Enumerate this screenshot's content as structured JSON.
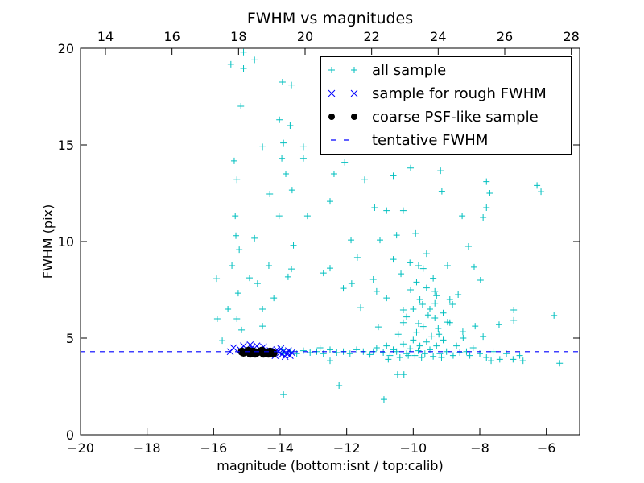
{
  "chart_data": {
    "type": "scatter",
    "title": "FWHM vs magnitudes",
    "xlabel": "magnitude (bottom:isnt / top:calib)",
    "ylabel": "FWHM (pix)",
    "xlim": [
      -20,
      -5
    ],
    "ylim": [
      0,
      20
    ],
    "top_axis_offset": 33.25,
    "xticks": [
      -20,
      -18,
      -16,
      -14,
      -12,
      -10,
      -8,
      -6
    ],
    "xtick_labels": [
      "−20",
      "−18",
      "−16",
      "−14",
      "−12",
      "−10",
      "−8",
      "−6"
    ],
    "yticks": [
      0,
      5,
      10,
      15,
      20
    ],
    "ytick_labels": [
      "0",
      "5",
      "10",
      "15",
      "20"
    ],
    "top_xticks": [
      14,
      16,
      18,
      20,
      22,
      24,
      26,
      28
    ],
    "top_xtick_labels": [
      "14",
      "16",
      "18",
      "20",
      "22",
      "24",
      "26",
      "28"
    ],
    "legend_position": "top-right",
    "tentative_fwhm": 4.3,
    "colors": {
      "all": "#00bfbf",
      "rough": "#0000ff",
      "coarse": "#000000",
      "tentative": "#0000ff"
    },
    "series": [
      {
        "name": "all sample",
        "marker": "plus",
        "points": [
          [
            -15.48,
            19.17
          ],
          [
            -15.1,
            19.8
          ],
          [
            -14.77,
            19.4
          ],
          [
            -15.1,
            18.96
          ],
          [
            -13.93,
            18.25
          ],
          [
            -13.66,
            18.1
          ],
          [
            -15.18,
            17.0
          ],
          [
            -14.02,
            16.3
          ],
          [
            -13.7,
            16.0
          ],
          [
            -13.9,
            15.1
          ],
          [
            -13.3,
            14.9
          ],
          [
            -14.53,
            14.9
          ],
          [
            -15.38,
            14.17
          ],
          [
            -13.95,
            14.3
          ],
          [
            -13.3,
            14.3
          ],
          [
            -12.38,
            13.5
          ],
          [
            -15.3,
            13.2
          ],
          [
            -13.83,
            13.5
          ],
          [
            -12.06,
            14.1
          ],
          [
            -11.46,
            13.2
          ],
          [
            -10.6,
            13.4
          ],
          [
            -10.08,
            13.8
          ],
          [
            -9.18,
            13.66
          ],
          [
            -7.8,
            13.1
          ],
          [
            -6.28,
            12.9
          ],
          [
            -6.16,
            12.58
          ],
          [
            -9.14,
            12.6
          ],
          [
            -7.7,
            12.5
          ],
          [
            -14.31,
            12.46
          ],
          [
            -13.64,
            12.66
          ],
          [
            -12.5,
            12.08
          ],
          [
            -11.16,
            11.75
          ],
          [
            -10.8,
            11.6
          ],
          [
            -10.3,
            11.6
          ],
          [
            -8.53,
            11.33
          ],
          [
            -7.8,
            11.75
          ],
          [
            -7.9,
            11.25
          ],
          [
            -13.18,
            11.33
          ],
          [
            -14.03,
            11.33
          ],
          [
            -15.35,
            11.33
          ],
          [
            -15.33,
            10.3
          ],
          [
            -14.77,
            10.17
          ],
          [
            -11.87,
            10.08
          ],
          [
            -11.0,
            10.08
          ],
          [
            -10.5,
            10.33
          ],
          [
            -9.93,
            10.42
          ],
          [
            -8.34,
            9.75
          ],
          [
            -13.6,
            9.8
          ],
          [
            -15.23,
            9.58
          ],
          [
            -11.68,
            9.17
          ],
          [
            -10.6,
            9.08
          ],
          [
            -9.6,
            9.37
          ],
          [
            -15.45,
            8.75
          ],
          [
            -14.34,
            8.75
          ],
          [
            -13.66,
            8.58
          ],
          [
            -12.5,
            8.62
          ],
          [
            -15.91,
            8.08
          ],
          [
            -14.92,
            8.12
          ],
          [
            -13.76,
            8.17
          ],
          [
            -12.7,
            8.37
          ],
          [
            -11.2,
            8.04
          ],
          [
            -10.37,
            8.33
          ],
          [
            -9.84,
            8.75
          ],
          [
            -8.97,
            8.75
          ],
          [
            -8.17,
            8.67
          ],
          [
            -7.98,
            8.0
          ],
          [
            -14.68,
            7.83
          ],
          [
            -11.85,
            7.83
          ],
          [
            -11.1,
            7.42
          ],
          [
            -15.26,
            7.33
          ],
          [
            -14.19,
            7.08
          ],
          [
            -12.1,
            7.58
          ],
          [
            -10.8,
            7.08
          ],
          [
            -10.08,
            7.5
          ],
          [
            -9.35,
            7.42
          ],
          [
            -8.65,
            7.25
          ],
          [
            -15.57,
            6.5
          ],
          [
            -11.58,
            6.58
          ],
          [
            -10.3,
            6.46
          ],
          [
            -9.72,
            6.75
          ],
          [
            -8.82,
            6.75
          ],
          [
            -6.98,
            6.46
          ],
          [
            -5.77,
            6.17
          ],
          [
            -15.3,
            6.0
          ],
          [
            -14.53,
            6.5
          ],
          [
            -11.05,
            5.58
          ],
          [
            -9.35,
            6.04
          ],
          [
            -9.84,
            5.75
          ],
          [
            -8.97,
            5.83
          ],
          [
            -8.14,
            5.62
          ],
          [
            -7.42,
            5.7
          ],
          [
            -6.98,
            5.92
          ],
          [
            -15.89,
            6.0
          ],
          [
            -14.53,
            5.62
          ],
          [
            -15.16,
            5.42
          ],
          [
            -9.23,
            5.2
          ],
          [
            -8.51,
            5.33
          ],
          [
            -7.9,
            5.08
          ],
          [
            -15.74,
            4.87
          ],
          [
            -13.9,
            2.08
          ],
          [
            -12.23,
            2.54
          ],
          [
            -10.88,
            1.83
          ],
          [
            -10.47,
            3.12
          ],
          [
            -10.28,
            3.12
          ],
          [
            -5.6,
            3.7
          ],
          [
            -12.5,
            3.83
          ],
          [
            -6.7,
            3.83
          ],
          [
            -7.66,
            3.83
          ],
          [
            -13.7,
            4.3
          ],
          [
            -13.5,
            4.2
          ],
          [
            -13.3,
            4.35
          ],
          [
            -13.1,
            4.25
          ],
          [
            -12.9,
            4.3
          ],
          [
            -12.7,
            4.2
          ],
          [
            -12.5,
            4.4
          ],
          [
            -12.3,
            4.25
          ],
          [
            -12.1,
            4.3
          ],
          [
            -11.9,
            4.2
          ],
          [
            -11.7,
            4.4
          ],
          [
            -11.5,
            4.3
          ],
          [
            -11.3,
            4.15
          ],
          [
            -11.1,
            4.5
          ],
          [
            -10.9,
            4.25
          ],
          [
            -10.8,
            4.6
          ],
          [
            -10.7,
            4.1
          ],
          [
            -10.6,
            4.4
          ],
          [
            -10.5,
            4.3
          ],
          [
            -10.4,
            4.0
          ],
          [
            -10.3,
            4.7
          ],
          [
            -10.2,
            4.2
          ],
          [
            -10.1,
            4.45
          ],
          [
            -10.0,
            4.9
          ],
          [
            -9.95,
            4.1
          ],
          [
            -9.9,
            5.3
          ],
          [
            -9.85,
            4.35
          ],
          [
            -9.8,
            4.6
          ],
          [
            -9.7,
            5.6
          ],
          [
            -9.65,
            4.2
          ],
          [
            -9.6,
            4.8
          ],
          [
            -9.55,
            6.2
          ],
          [
            -9.5,
            4.4
          ],
          [
            -9.45,
            5.1
          ],
          [
            -9.4,
            4.05
          ],
          [
            -9.35,
            6.8
          ],
          [
            -9.3,
            4.6
          ],
          [
            -9.25,
            5.5
          ],
          [
            -9.2,
            4.2
          ],
          [
            -9.1,
            4.9
          ],
          [
            -9.0,
            4.3
          ],
          [
            -8.9,
            5.8
          ],
          [
            -8.8,
            4.1
          ],
          [
            -8.7,
            4.6
          ],
          [
            -8.6,
            4.25
          ],
          [
            -8.5,
            5.0
          ],
          [
            -8.4,
            4.3
          ],
          [
            -8.3,
            4.1
          ],
          [
            -8.2,
            4.5
          ],
          [
            -8.0,
            4.2
          ],
          [
            -7.8,
            4.0
          ],
          [
            -7.6,
            4.3
          ],
          [
            -7.4,
            3.9
          ],
          [
            -7.2,
            4.2
          ],
          [
            -7.0,
            3.9
          ],
          [
            -6.8,
            4.1
          ],
          [
            -13.9,
            4.2
          ],
          [
            -13.95,
            4.4
          ],
          [
            -12.8,
            4.5
          ],
          [
            -11.2,
            4.3
          ],
          [
            -10.75,
            3.9
          ],
          [
            -10.15,
            4.1
          ],
          [
            -9.75,
            4.0
          ],
          [
            -9.15,
            4.0
          ],
          [
            -10.45,
            5.2
          ],
          [
            -10.2,
            6.1
          ],
          [
            -9.8,
            7.0
          ],
          [
            -10.0,
            6.5
          ],
          [
            -9.6,
            7.6
          ],
          [
            -9.4,
            8.1
          ],
          [
            -10.3,
            5.8
          ],
          [
            -9.9,
            7.9
          ],
          [
            -9.7,
            8.6
          ],
          [
            -10.1,
            8.9
          ],
          [
            -9.5,
            6.5
          ],
          [
            -9.3,
            7.2
          ],
          [
            -9.1,
            6.3
          ],
          [
            -8.9,
            7.0
          ]
        ]
      },
      {
        "name": "sample for rough FWHM",
        "marker": "x",
        "points": [
          [
            -15.5,
            4.3
          ],
          [
            -15.4,
            4.5
          ],
          [
            -15.2,
            4.4
          ],
          [
            -15.1,
            4.6
          ],
          [
            -15.0,
            4.3
          ],
          [
            -14.9,
            4.65
          ],
          [
            -14.85,
            4.5
          ],
          [
            -14.8,
            4.3
          ],
          [
            -14.7,
            4.6
          ],
          [
            -14.6,
            4.4
          ],
          [
            -14.5,
            4.55
          ],
          [
            -14.4,
            4.3
          ],
          [
            -14.3,
            4.35
          ],
          [
            -14.2,
            4.2
          ],
          [
            -14.1,
            4.4
          ],
          [
            -14.0,
            4.25
          ],
          [
            -13.95,
            4.15
          ],
          [
            -13.9,
            4.3
          ],
          [
            -13.85,
            4.05
          ],
          [
            -13.8,
            4.2
          ],
          [
            -13.75,
            4.35
          ],
          [
            -13.7,
            4.1
          ],
          [
            -13.65,
            4.25
          ],
          [
            -14.15,
            4.1
          ],
          [
            -14.05,
            4.3
          ],
          [
            -13.98,
            4.45
          ]
        ]
      },
      {
        "name": "coarse PSF-like sample",
        "marker": "dot",
        "points": [
          [
            -15.1,
            4.25
          ],
          [
            -15.0,
            4.3
          ],
          [
            -14.9,
            4.2
          ],
          [
            -14.8,
            4.3
          ],
          [
            -14.7,
            4.25
          ],
          [
            -14.6,
            4.3
          ],
          [
            -14.5,
            4.2
          ],
          [
            -14.4,
            4.25
          ],
          [
            -14.3,
            4.3
          ],
          [
            -14.2,
            4.22
          ],
          [
            -15.15,
            4.3
          ],
          [
            -14.95,
            4.35
          ],
          [
            -14.75,
            4.2
          ],
          [
            -14.55,
            4.35
          ],
          [
            -14.35,
            4.2
          ]
        ]
      },
      {
        "name": "tentative FWHM",
        "marker": "dashed-line"
      }
    ]
  }
}
